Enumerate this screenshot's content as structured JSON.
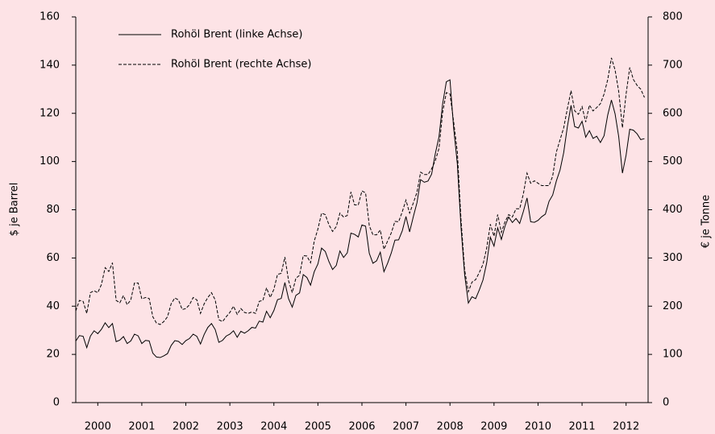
{
  "chart_data": {
    "type": "line",
    "y_label": "$ je Barrel",
    "y2_label": "€ je Tonne",
    "legend": "top-left",
    "xlim": [
      2000,
      2013
    ],
    "xticks": [
      {
        "value": 2000.5,
        "label": "2000"
      },
      {
        "value": 2001.5,
        "label": "2001"
      },
      {
        "value": 2002.5,
        "label": "2002"
      },
      {
        "value": 2003.5,
        "label": "2003"
      },
      {
        "value": 2004.5,
        "label": "2004"
      },
      {
        "value": 2005.5,
        "label": "2005"
      },
      {
        "value": 2006.5,
        "label": "2006"
      },
      {
        "value": 2007.5,
        "label": "2007"
      },
      {
        "value": 2008.5,
        "label": "2008"
      },
      {
        "value": 2009.5,
        "label": "2009"
      },
      {
        "value": 2010.5,
        "label": "2010"
      },
      {
        "value": 2011.5,
        "label": "2011"
      },
      {
        "value": 2012.5,
        "label": "2012"
      }
    ],
    "ylim": [
      0,
      160
    ],
    "yticks": [
      0,
      20,
      40,
      60,
      80,
      100,
      120,
      140,
      160
    ],
    "y2lim": [
      0,
      800
    ],
    "y2ticks": [
      0,
      100,
      200,
      300,
      400,
      500,
      600,
      700,
      800
    ],
    "x": [
      2000,
      2000.083,
      2000.167,
      2000.25,
      2000.333,
      2000.417,
      2000.5,
      2000.583,
      2000.667,
      2000.75,
      2000.833,
      2000.917,
      2001,
      2001.083,
      2001.167,
      2001.25,
      2001.333,
      2001.417,
      2001.5,
      2001.583,
      2001.667,
      2001.75,
      2001.833,
      2001.917,
      2002,
      2002.083,
      2002.167,
      2002.25,
      2002.333,
      2002.417,
      2002.5,
      2002.583,
      2002.667,
      2002.75,
      2002.833,
      2002.917,
      2003,
      2003.083,
      2003.167,
      2003.25,
      2003.333,
      2003.417,
      2003.5,
      2003.583,
      2003.667,
      2003.75,
      2003.833,
      2003.917,
      2004,
      2004.083,
      2004.167,
      2004.25,
      2004.333,
      2004.417,
      2004.5,
      2004.583,
      2004.667,
      2004.75,
      2004.833,
      2004.917,
      2005,
      2005.083,
      2005.167,
      2005.25,
      2005.333,
      2005.417,
      2005.5,
      2005.583,
      2005.667,
      2005.75,
      2005.833,
      2005.917,
      2006,
      2006.083,
      2006.167,
      2006.25,
      2006.333,
      2006.417,
      2006.5,
      2006.583,
      2006.667,
      2006.75,
      2006.833,
      2006.917,
      2007,
      2007.083,
      2007.167,
      2007.25,
      2007.333,
      2007.417,
      2007.5,
      2007.583,
      2007.667,
      2007.75,
      2007.833,
      2007.917,
      2008,
      2008.083,
      2008.167,
      2008.25,
      2008.333,
      2008.417,
      2008.5,
      2008.583,
      2008.667,
      2008.75,
      2008.833,
      2008.917,
      2009,
      2009.083,
      2009.167,
      2009.25,
      2009.333,
      2009.417,
      2009.5,
      2009.583,
      2009.667,
      2009.75,
      2009.833,
      2009.917,
      2010,
      2010.083,
      2010.167,
      2010.25,
      2010.333,
      2010.417,
      2010.5,
      2010.583,
      2010.667,
      2010.75,
      2010.833,
      2010.917,
      2011,
      2011.083,
      2011.167,
      2011.25,
      2011.333,
      2011.417,
      2011.5,
      2011.583,
      2011.667,
      2011.75,
      2011.833,
      2011.917,
      2012,
      2012.083,
      2012.167,
      2012.25,
      2012.333,
      2012.417,
      2012.5,
      2012.583,
      2012.667,
      2012.75,
      2012.833,
      2012.917
    ],
    "series": [
      {
        "name": "Rohöl Brent (linke Achse)",
        "color": "#000000",
        "dash": "none",
        "values": [
          25.5,
          27.8,
          27.5,
          22.8,
          27.6,
          29.8,
          28.6,
          30.4,
          33.1,
          31.1,
          32.8,
          25.3,
          25.9,
          27.4,
          24.5,
          25.6,
          28.4,
          27.7,
          24.5,
          25.8,
          25.6,
          20.5,
          18.9,
          18.7,
          19.4,
          20.3,
          23.7,
          25.7,
          25.4,
          24.1,
          25.7,
          26.6,
          28.4,
          27.5,
          24.3,
          28.3,
          31.2,
          32.8,
          30.3,
          25.0,
          25.8,
          27.6,
          28.4,
          29.8,
          27.1,
          29.6,
          28.8,
          29.8,
          31.2,
          30.9,
          33.8,
          33.4,
          37.9,
          35.2,
          38.2,
          42.7,
          43.2,
          49.8,
          43.1,
          39.6,
          44.5,
          45.5,
          53.1,
          51.9,
          48.7,
          54.3,
          57.5,
          64.1,
          62.7,
          58.5,
          55.2,
          56.9,
          62.9,
          60.2,
          62.1,
          70.3,
          69.8,
          68.7,
          73.7,
          73.2,
          61.9,
          57.8,
          58.8,
          62.4,
          54.3,
          57.8,
          62.1,
          67.4,
          67.5,
          71.3,
          77.2,
          70.8,
          77.1,
          82.9,
          92.5,
          91.4,
          91.9,
          94.8,
          103.3,
          110.2,
          123.9,
          133.1,
          133.9,
          113.9,
          99.1,
          72.9,
          53.0,
          41.3,
          43.9,
          43.1,
          46.8,
          50.9,
          57.9,
          68.6,
          64.9,
          72.5,
          67.7,
          73.2,
          77.0,
          74.7,
          76.4,
          74.3,
          79.3,
          84.9,
          75.0,
          74.8,
          75.6,
          77.1,
          78.2,
          83.5,
          86.1,
          92.0,
          96.5,
          103.7,
          114.6,
          123.3,
          114.5,
          113.9,
          116.7,
          110.1,
          112.8,
          109.6,
          110.5,
          107.9,
          110.7,
          119.3,
          125.5,
          119.8,
          110.3,
          95.2,
          102.6,
          113.4,
          113.0,
          111.5,
          109.1,
          109.5
        ]
      },
      {
        "name": "Rohöl Brent (rechte Achse)",
        "color": "#000000",
        "dash": "4,2",
        "axis": "y2",
        "values": [
          190,
          212,
          210,
          185,
          228,
          232,
          228,
          245,
          280,
          272,
          290,
          212,
          207,
          222,
          203,
          213,
          248,
          248,
          215,
          218,
          216,
          178,
          165,
          162,
          168,
          178,
          205,
          217,
          213,
          193,
          195,
          203,
          218,
          213,
          185,
          205,
          218,
          228,
          213,
          172,
          168,
          178,
          187,
          200,
          183,
          195,
          187,
          185,
          188,
          185,
          210,
          212,
          238,
          218,
          235,
          266,
          268,
          302,
          253,
          228,
          258,
          264,
          305,
          304,
          290,
          335,
          360,
          393,
          390,
          369,
          355,
          365,
          393,
          385,
          388,
          437,
          410,
          410,
          439,
          435,
          367,
          348,
          348,
          358,
          318,
          335,
          352,
          376,
          375,
          396,
          420,
          393,
          414,
          436,
          478,
          473,
          473,
          485,
          502,
          527,
          602,
          643,
          640,
          583,
          520,
          380,
          275,
          230,
          250,
          255,
          270,
          287,
          320,
          370,
          345,
          390,
          353,
          375,
          390,
          385,
          402,
          402,
          433,
          476,
          455,
          460,
          455,
          450,
          450,
          450,
          470,
          520,
          545,
          570,
          610,
          647,
          605,
          598,
          614,
          582,
          617,
          605,
          612,
          620,
          640,
          670,
          715,
          690,
          645,
          570,
          640,
          695,
          670,
          658,
          650,
          633
        ]
      }
    ]
  }
}
